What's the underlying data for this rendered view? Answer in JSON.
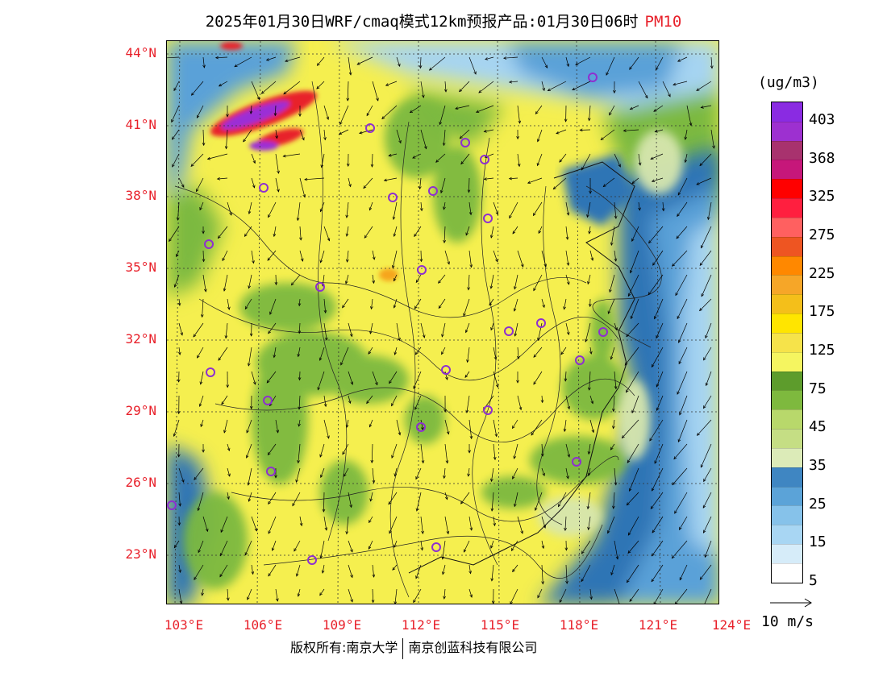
{
  "title": {
    "text": "2025年01月30日WRF/cmaq模式12km预报产品:01月30日06时",
    "pollutant": "PM10"
  },
  "map": {
    "lat_labels": [
      "44°N",
      "41°N",
      "38°N",
      "35°N",
      "32°N",
      "29°N",
      "26°N",
      "23°N"
    ],
    "lon_labels": [
      "103°E",
      "106°E",
      "109°E",
      "112°E",
      "115°E",
      "118°E",
      "121°E",
      "124°E"
    ],
    "colors": {
      "ocean_deep": "#2f74b5",
      "ocean_mid": "#5aa1d8",
      "ocean_light": "#a6d4f2",
      "land_low": "#d7e6ae",
      "land_green": "#7cb93f",
      "land_yellow": "#f5ef4f",
      "hot_orange": "#f6a61a",
      "hot_red": "#e8202a",
      "hot_purple": "#9b2fd6",
      "marker_color": "#8e2fd0"
    }
  },
  "legend": {
    "unit": "(ug/m3)",
    "labels": [
      "403",
      "368",
      "325",
      "275",
      "225",
      "175",
      "125",
      "75",
      "45",
      "35",
      "25",
      "15",
      "5"
    ],
    "segments": [
      "#8a2be2",
      "#9d30d0",
      "#a8326e",
      "#c6177a",
      "#ff0000",
      "#ff1f3f",
      "#ff6060",
      "#ee5522",
      "#ff8800",
      "#f6a628",
      "#f4bf1a",
      "#ffe500",
      "#f6e34a",
      "#f5f560",
      "#5d9c2c",
      "#7eb93e",
      "#b8d86b",
      "#c5de84",
      "#dcebb8",
      "#3f86c2",
      "#5ba3d8",
      "#86c2ea",
      "#a8d6f3",
      "#d6ecf9",
      "#ffffff"
    ]
  },
  "wind_ref": {
    "label": "10 m/s"
  },
  "copyright": {
    "left": "版权所有:南京大学",
    "right": "南京创蓝科技有限公司"
  }
}
